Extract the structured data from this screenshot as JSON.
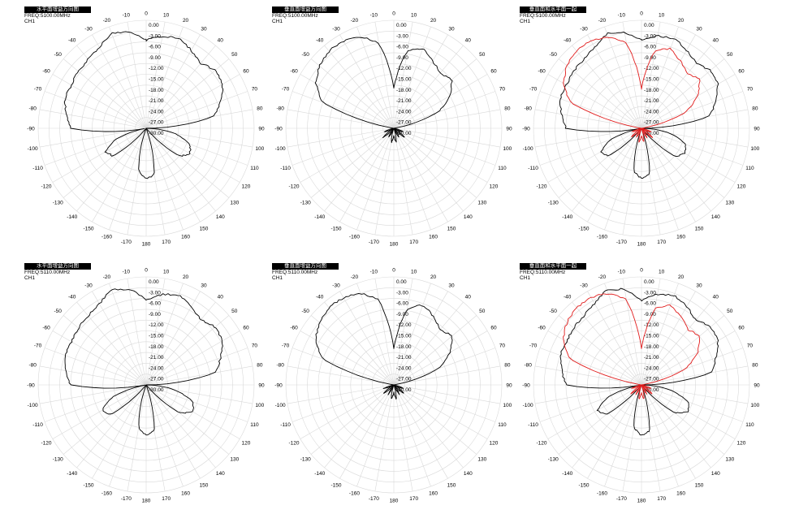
{
  "colors": {
    "horizontal": "#000000",
    "vertical": "#000000",
    "overlay_red": "#e11b1b",
    "overlay_black": "#000000",
    "grid": "#d9d9d9"
  },
  "panels": [
    {
      "title": "水平面增益方向图",
      "freq": "FREQ:5100.00MHz",
      "channel": "CH1"
    },
    {
      "title": "垂直面增益方向图",
      "freq": "FREQ:5100.00MHz",
      "channel": "CH1"
    },
    {
      "title": "垂直面和水平面一起",
      "freq": "FREQ:5100.00MHz",
      "channel": "CH1"
    },
    {
      "title": "水平面增益方向图",
      "freq": "FREQ:5110.00MHz",
      "channel": "CH1"
    },
    {
      "title": "垂直面增益方向图",
      "freq": "FREQ:5110.00MHz",
      "channel": "CH1"
    },
    {
      "title": "垂直面和水平面一起",
      "freq": "FREQ:5110.00MHz",
      "channel": "CH1"
    }
  ],
  "chart_data": [
    {
      "type": "polar",
      "radial_labels": [
        "0.00",
        "-3.00",
        "-6.00",
        "-9.00",
        "-12.00",
        "-15.00",
        "-18.00",
        "-21.00",
        "-24.00",
        "-27.00",
        "-30.00"
      ],
      "radial_range_db": [
        -30,
        0
      ],
      "angle_labels": [
        "0",
        "10",
        "20",
        "30",
        "40",
        "50",
        "60",
        "70",
        "80",
        "90",
        "100",
        "110",
        "120",
        "130",
        "140",
        "150",
        "160",
        "170",
        "180",
        "-170",
        "-160",
        "-150",
        "-140",
        "-130",
        "-120",
        "-110",
        "-100",
        "-90",
        "-80",
        "-70",
        "-60",
        "-50",
        "-40",
        "-30",
        "-20",
        "-10"
      ],
      "angles_deg": [
        0,
        10,
        20,
        30,
        40,
        50,
        60,
        70,
        80,
        90,
        100,
        110,
        120,
        130,
        140,
        150,
        160,
        170,
        180,
        -170,
        -160,
        -150,
        -140,
        -130,
        -120,
        -110,
        -100,
        -90,
        -80,
        -70,
        -60,
        -50,
        -40,
        -30,
        -20,
        -10
      ],
      "series": [
        {
          "values_db": [
            -5.5,
            -4,
            -3.5,
            -5,
            -6.5,
            -5,
            -5.5,
            -8,
            -11,
            -30,
            -22,
            -17,
            -16,
            -18,
            -30,
            -30,
            -30,
            -17,
            -16,
            -18,
            -30,
            -30,
            -30,
            -18,
            -17,
            -21,
            -30,
            -9,
            -7.5,
            -6,
            -6,
            -5.5,
            -5,
            -4,
            -2,
            -3
          ]
        }
      ]
    },
    {
      "type": "polar",
      "radial_labels": [
        "0.00",
        "-3.00",
        "-6.00",
        "-9.00",
        "-12.00",
        "-15.00",
        "-18.00",
        "-21.00",
        "-24.00",
        "-27.00",
        "-30.00"
      ],
      "radial_range_db": [
        -30,
        0
      ],
      "angle_labels": [
        "0",
        "10",
        "20",
        "30",
        "40",
        "50",
        "60",
        "70",
        "80",
        "90",
        "100",
        "110",
        "120",
        "130",
        "140",
        "150",
        "160",
        "170",
        "180",
        "-170",
        "-160",
        "-150",
        "-140",
        "-130",
        "-120",
        "-110",
        "-100",
        "-90",
        "-80",
        "-70",
        "-60",
        "-50",
        "-40",
        "-30",
        "-20",
        "-10"
      ],
      "angles_deg": [
        0,
        10,
        20,
        30,
        40,
        50,
        60,
        70,
        80,
        90,
        100,
        110,
        120,
        130,
        140,
        150,
        160,
        170,
        180,
        -170,
        -160,
        -150,
        -140,
        -130,
        -120,
        -110,
        -100,
        -90,
        -80,
        -70,
        -60,
        -50,
        -40,
        -30,
        -20,
        -10
      ],
      "series": [
        {
          "values_db": [
            -19,
            -8,
            -6.5,
            -8.5,
            -10,
            -9,
            -12,
            -17,
            -30,
            -30,
            -30,
            -27,
            -30,
            -26,
            -30,
            -27,
            -30,
            -26,
            -28,
            -26,
            -30,
            -27,
            -30,
            -26,
            -30,
            -27,
            -30,
            -30,
            -30,
            -9,
            -5,
            -3,
            -2,
            -2,
            -3,
            -6
          ]
        }
      ]
    },
    {
      "type": "polar",
      "radial_labels": [
        "0.00",
        "-3.00",
        "-6.00",
        "-9.00",
        "-12.00",
        "-15.00",
        "-18.00",
        "-21.00",
        "-24.00",
        "-27.00",
        "-30.00"
      ],
      "radial_range_db": [
        -30,
        0
      ],
      "angle_labels": [
        "0",
        "10",
        "20",
        "30",
        "40",
        "50",
        "60",
        "70",
        "80",
        "90",
        "100",
        "110",
        "120",
        "130",
        "140",
        "150",
        "160",
        "170",
        "180",
        "-170",
        "-160",
        "-150",
        "-140",
        "-130",
        "-120",
        "-110",
        "-100",
        "-90",
        "-80",
        "-70",
        "-60",
        "-50",
        "-40",
        "-30",
        "-20",
        "-10"
      ],
      "angles_deg": [
        0,
        10,
        20,
        30,
        40,
        50,
        60,
        70,
        80,
        90,
        100,
        110,
        120,
        130,
        140,
        150,
        160,
        170,
        180,
        -170,
        -160,
        -150,
        -140,
        -130,
        -120,
        -110,
        -100,
        -90,
        -80,
        -70,
        -60,
        -50,
        -40,
        -30,
        -20,
        -10
      ],
      "series": [
        {
          "values_db": [
            -5.5,
            -4,
            -3.5,
            -5,
            -6.5,
            -5,
            -5.5,
            -8,
            -11,
            -30,
            -22,
            -17,
            -16,
            -18,
            -30,
            -30,
            -30,
            -17,
            -16,
            -18,
            -30,
            -30,
            -30,
            -18,
            -17,
            -21,
            -30,
            -9,
            -7.5,
            -6,
            -6,
            -5.5,
            -5,
            -4,
            -2,
            -3
          ]
        },
        {
          "values_db": [
            -19,
            -8,
            -6.5,
            -8.5,
            -10,
            -9,
            -12,
            -17,
            -30,
            -30,
            -30,
            -27,
            -30,
            -26,
            -30,
            -27,
            -30,
            -26,
            -28,
            -26,
            -30,
            -27,
            -30,
            -26,
            -30,
            -27,
            -30,
            -30,
            -30,
            -9,
            -5,
            -3,
            -2,
            -2,
            -3,
            -6
          ]
        }
      ]
    },
    {
      "type": "polar",
      "radial_labels": [
        "0.00",
        "-3.00",
        "-6.00",
        "-9.00",
        "-12.00",
        "-15.00",
        "-18.00",
        "-21.00",
        "-24.00",
        "-27.00",
        "-30.00"
      ],
      "radial_range_db": [
        -30,
        0
      ],
      "angle_labels": [
        "0",
        "10",
        "20",
        "30",
        "40",
        "50",
        "60",
        "70",
        "80",
        "90",
        "100",
        "110",
        "120",
        "130",
        "140",
        "150",
        "160",
        "170",
        "180",
        "-170",
        "-160",
        "-150",
        "-140",
        "-130",
        "-120",
        "-110",
        "-100",
        "-90",
        "-80",
        "-70",
        "-60",
        "-50",
        "-40",
        "-30",
        "-20",
        "-10"
      ],
      "angles_deg": [
        0,
        10,
        20,
        30,
        40,
        50,
        60,
        70,
        80,
        90,
        100,
        110,
        120,
        130,
        140,
        150,
        160,
        170,
        180,
        -170,
        -160,
        -150,
        -140,
        -130,
        -120,
        -110,
        -100,
        -90,
        -80,
        -70,
        -60,
        -50,
        -40,
        -30,
        -20,
        -10
      ],
      "series": [
        {
          "values_db": [
            -6.5,
            -4.5,
            -3.5,
            -5,
            -6.5,
            -5,
            -5.5,
            -8,
            -10.5,
            -30,
            -22,
            -16,
            -15,
            -18,
            -30,
            -30,
            -30,
            -17,
            -16,
            -18,
            -30,
            -30,
            -30,
            -17,
            -16,
            -20,
            -30,
            -9,
            -7.5,
            -6,
            -6,
            -5.5,
            -5,
            -4,
            -2,
            -3
          ]
        }
      ]
    },
    {
      "type": "polar",
      "radial_labels": [
        "0.00",
        "-3.00",
        "-6.00",
        "-9.00",
        "-12.00",
        "-15.00",
        "-18.00",
        "-21.00",
        "-24.00",
        "-27.00",
        "-30.00"
      ],
      "radial_range_db": [
        -30,
        0
      ],
      "angle_labels": [
        "0",
        "10",
        "20",
        "30",
        "40",
        "50",
        "60",
        "70",
        "80",
        "90",
        "100",
        "110",
        "120",
        "130",
        "140",
        "150",
        "160",
        "170",
        "180",
        "-170",
        "-160",
        "-150",
        "-140",
        "-130",
        "-120",
        "-110",
        "-100",
        "-90",
        "-80",
        "-70",
        "-60",
        "-50",
        "-40",
        "-30",
        "-20",
        "-10"
      ],
      "angles_deg": [
        0,
        10,
        20,
        30,
        40,
        50,
        60,
        70,
        80,
        90,
        100,
        110,
        120,
        130,
        140,
        150,
        160,
        170,
        180,
        -170,
        -160,
        -150,
        -140,
        -130,
        -120,
        -110,
        -100,
        -90,
        -80,
        -70,
        -60,
        -50,
        -40,
        -30,
        -20,
        -10
      ],
      "series": [
        {
          "values_db": [
            -20,
            -8.5,
            -6.5,
            -8,
            -10,
            -9,
            -12,
            -17,
            -30,
            -30,
            -30,
            -27,
            -30,
            -26,
            -30,
            -27,
            -30,
            -26,
            -28,
            -26,
            -30,
            -27,
            -30,
            -26,
            -30,
            -27,
            -30,
            -30,
            -30,
            -9,
            -5,
            -3,
            -2,
            -2,
            -3,
            -6
          ]
        }
      ]
    },
    {
      "type": "polar",
      "radial_labels": [
        "0.00",
        "-3.00",
        "-6.00",
        "-9.00",
        "-12.00",
        "-15.00",
        "-18.00",
        "-21.00",
        "-24.00",
        "-27.00",
        "-30.00"
      ],
      "radial_range_db": [
        -30,
        0
      ],
      "angle_labels": [
        "0",
        "10",
        "20",
        "30",
        "40",
        "50",
        "60",
        "70",
        "80",
        "90",
        "100",
        "110",
        "120",
        "130",
        "140",
        "150",
        "160",
        "170",
        "180",
        "-170",
        "-160",
        "-150",
        "-140",
        "-130",
        "-120",
        "-110",
        "-100",
        "-90",
        "-80",
        "-70",
        "-60",
        "-50",
        "-40",
        "-30",
        "-20",
        "-10"
      ],
      "angles_deg": [
        0,
        10,
        20,
        30,
        40,
        50,
        60,
        70,
        80,
        90,
        100,
        110,
        120,
        130,
        140,
        150,
        160,
        170,
        180,
        -170,
        -160,
        -150,
        -140,
        -130,
        -120,
        -110,
        -100,
        -90,
        -80,
        -70,
        -60,
        -50,
        -40,
        -30,
        -20,
        -10
      ],
      "series": [
        {
          "values_db": [
            -6.5,
            -4.5,
            -3.5,
            -5,
            -6.5,
            -5,
            -5.5,
            -8,
            -10.5,
            -30,
            -22,
            -16,
            -15,
            -18,
            -30,
            -30,
            -30,
            -17,
            -16,
            -18,
            -30,
            -30,
            -30,
            -17,
            -16,
            -20,
            -30,
            -9,
            -7.5,
            -6,
            -6,
            -5.5,
            -5,
            -4,
            -2,
            -3
          ]
        },
        {
          "values_db": [
            -20,
            -8.5,
            -6.5,
            -8,
            -10,
            -9,
            -12,
            -17,
            -30,
            -30,
            -30,
            -27,
            -30,
            -26,
            -30,
            -27,
            -30,
            -26,
            -28,
            -26,
            -30,
            -27,
            -30,
            -26,
            -30,
            -27,
            -30,
            -30,
            -30,
            -9,
            -5,
            -3,
            -2,
            -2,
            -3,
            -6
          ]
        }
      ]
    }
  ]
}
